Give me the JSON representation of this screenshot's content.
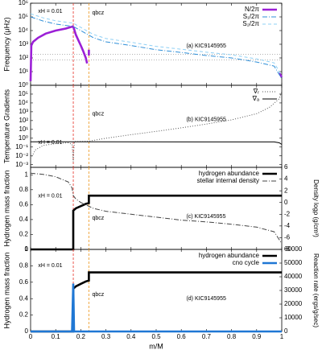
{
  "chart_data": [
    {
      "type": "line",
      "ylabel": "Frequency (μHz)",
      "ylog": true,
      "xlim": [
        0,
        1
      ],
      "xticks": [
        0,
        0.1,
        0.2,
        0.3,
        0.4,
        0.5,
        0.6,
        0.7,
        0.8,
        0.9,
        1
      ],
      "ylim": [
        1,
        1000000
      ],
      "yticks": [
        {
          "value": 1,
          "label": "10⁰"
        },
        {
          "value": 10,
          "label": "10¹"
        },
        {
          "value": 100,
          "label": "10²"
        },
        {
          "value": 1000,
          "label": "10³"
        },
        {
          "value": 10000,
          "label": "10⁴"
        },
        {
          "value": 100000,
          "label": "10⁵"
        },
        {
          "value": 1000000,
          "label": "10⁶"
        }
      ],
      "vlines": [
        {
          "x": 0.17,
          "color": "#e8453c"
        },
        {
          "x": 0.232,
          "color": "#f0a030"
        }
      ],
      "hlines": [
        70,
        180
      ],
      "annotations": [
        "xH = 0.01",
        "qbcz",
        "(a) KIC9145955"
      ],
      "series": [
        {
          "name": "N/2π",
          "color": "#9b1fd6",
          "style": "thick",
          "x": [
            0,
            0.003,
            0.01,
            0.03,
            0.06,
            0.1,
            0.14,
            0.168,
            0.172,
            0.18,
            0.19,
            0.2,
            0.21,
            0.22,
            0.225,
            null,
            0.232,
            0.232,
            null,
            0.99,
            1.0
          ],
          "values": [
            2,
            800,
            1500,
            3000,
            6000,
            10000,
            14000,
            20000,
            15000,
            5000,
            2000,
            800,
            300,
            100,
            40,
            null,
            400,
            150,
            null,
            8,
            4
          ]
        },
        {
          "name": "S₁/2π",
          "color": "#2f8fd8",
          "style": "dashdot",
          "x": [
            0,
            0.05,
            0.1,
            0.17,
            0.2,
            0.25,
            0.3,
            0.4,
            0.5,
            0.6,
            0.7,
            0.8,
            0.9,
            0.97,
            1.0
          ],
          "values": [
            100000,
            50000,
            30000,
            20000,
            10000,
            3000,
            1500,
            800,
            400,
            250,
            150,
            100,
            50,
            25,
            3
          ]
        },
        {
          "name": "S₂/2π",
          "color": "#8fd0f5",
          "style": "dashed",
          "x": [
            0,
            0.05,
            0.1,
            0.17,
            0.2,
            0.25,
            0.3,
            0.4,
            0.5,
            0.6,
            0.7,
            0.8,
            0.9,
            0.97,
            1.0
          ],
          "values": [
            170000,
            85000,
            52000,
            35000,
            17000,
            5200,
            2600,
            1400,
            700,
            430,
            260,
            170,
            85,
            43,
            5
          ]
        }
      ]
    },
    {
      "type": "line",
      "ylabel": "Temperature Gradients",
      "ylog": true,
      "xlim": [
        0,
        1
      ],
      "xticks": [
        0,
        0.1,
        0.2,
        0.3,
        0.4,
        0.5,
        0.6,
        0.7,
        0.8,
        0.9,
        1
      ],
      "ylim": [
        0.0005,
        1000000
      ],
      "yticks": [
        {
          "value": 0.001,
          "label": "10⁻³"
        },
        {
          "value": 0.01,
          "label": "10⁻²"
        },
        {
          "value": 0.1,
          "label": "10⁻¹"
        },
        {
          "value": 1,
          "label": "10⁰"
        },
        {
          "value": 10,
          "label": "10¹"
        },
        {
          "value": 100,
          "label": "10²"
        },
        {
          "value": 1000,
          "label": "10³"
        },
        {
          "value": 10000,
          "label": "10⁴"
        },
        {
          "value": 100000,
          "label": "10⁵"
        }
      ],
      "vlines": [
        {
          "x": 0.17,
          "color": "#e8453c"
        },
        {
          "x": 0.232,
          "color": "#f0a030"
        }
      ],
      "annotations": [
        "xH = 0.01",
        "qbcz",
        "(b) KIC9145955"
      ],
      "series": [
        {
          "name": "∇ᵣ",
          "color": "#555555",
          "style": "dotted",
          "x": [
            0,
            0.02,
            0.05,
            0.1,
            0.15,
            0.165,
            0.17,
            0.172,
            0.175,
            0.2,
            0.23,
            0.3,
            0.4,
            0.5,
            0.6,
            0.7,
            0.8,
            0.9,
            0.95,
            0.99,
            1.0
          ],
          "values": [
            0.005,
            0.05,
            0.15,
            0.25,
            0.3,
            0.2,
            0.002,
            0.05,
            0.42,
            0.43,
            0.45,
            1,
            2.5,
            6,
            15,
            40,
            120,
            600,
            3000,
            30000,
            200000
          ]
        },
        {
          "name": "∇ₐ",
          "color": "#000000",
          "style": "solid",
          "x": [
            0,
            0.97,
            0.99,
            1.0
          ],
          "values": [
            0.4,
            0.38,
            0.3,
            0.2
          ]
        }
      ]
    },
    {
      "type": "line",
      "ylabel": "Hydrogen mass fraction",
      "y2label": "Density logρ (g/cm³)",
      "xlim": [
        0,
        1
      ],
      "xticks": [
        0,
        0.1,
        0.2,
        0.3,
        0.4,
        0.5,
        0.6,
        0.7,
        0.8,
        0.9,
        1
      ],
      "ylim": [
        0,
        1.1
      ],
      "yticks": [
        0,
        0.2,
        0.4,
        0.6,
        0.8,
        1
      ],
      "y2lim": [
        -8,
        6
      ],
      "y2ticks": [
        -8,
        -6,
        -4,
        -2,
        0,
        2,
        4,
        6
      ],
      "vlines": [
        {
          "x": 0.17,
          "color": "#e8453c"
        },
        {
          "x": 0.232,
          "color": "#f0a030"
        }
      ],
      "annotations": [
        "xH = 0.01",
        "qbcz",
        "(c) KIC9145955"
      ],
      "series": [
        {
          "name": "hydrogen abundance",
          "color": "#000000",
          "style": "thick",
          "x": [
            0,
            0.17,
            0.17,
            0.18,
            0.2,
            0.22,
            0.232,
            0.232,
            0.3,
            0.4,
            0.5,
            0.6,
            0.7,
            0.8,
            0.9,
            1.0
          ],
          "values": [
            0,
            0,
            0.52,
            0.55,
            0.58,
            0.61,
            0.62,
            0.72,
            0.72,
            0.72,
            0.72,
            0.72,
            0.72,
            0.72,
            0.72,
            0.72
          ]
        },
        {
          "name": "stellar internal density",
          "color": "#444444",
          "style": "dashdot",
          "axis": "y2",
          "x": [
            0,
            0.05,
            0.1,
            0.15,
            0.165,
            0.17,
            0.18,
            0.2,
            0.25,
            0.3,
            0.4,
            0.5,
            0.6,
            0.7,
            0.8,
            0.9,
            0.97,
            1.0
          ],
          "values": [
            5,
            4.8,
            4.4,
            3.5,
            2.5,
            1.2,
            0.6,
            0,
            -1,
            -1.5,
            -2,
            -2.5,
            -3,
            -3.3,
            -3.7,
            -4.2,
            -5,
            -7
          ]
        }
      ]
    },
    {
      "type": "line",
      "ylabel": "Hydrogen mass fraction",
      "y2label": "Reaction rate (ergs/g/sec)",
      "xlabel": "m/M",
      "xlim": [
        0,
        1
      ],
      "xticks": [
        0,
        0.1,
        0.2,
        0.3,
        0.4,
        0.5,
        0.6,
        0.7,
        0.8,
        0.9,
        1
      ],
      "ylim": [
        0,
        1
      ],
      "yticks": [
        0,
        0.2,
        0.4,
        0.6,
        0.8,
        1
      ],
      "y2lim": [
        0,
        60000
      ],
      "y2ticks": [
        0,
        10000,
        20000,
        30000,
        40000,
        50000,
        60000
      ],
      "vlines": [
        {
          "x": 0.17,
          "color": "#e8453c"
        },
        {
          "x": 0.232,
          "color": "#f0a030"
        }
      ],
      "annotations": [
        "xH = 0.01",
        "qbcz",
        "(d) KIC9145955"
      ],
      "series": [
        {
          "name": "hydrogen abundance",
          "color": "#000000",
          "style": "thick",
          "x": [
            0,
            0.17,
            0.17,
            0.18,
            0.2,
            0.22,
            0.232,
            0.232,
            0.3,
            0.4,
            0.5,
            0.6,
            0.7,
            0.8,
            0.9,
            1.0
          ],
          "values": [
            0,
            0,
            0.52,
            0.55,
            0.58,
            0.61,
            0.62,
            0.72,
            0.72,
            0.72,
            0.72,
            0.72,
            0.72,
            0.72,
            0.72,
            0.72
          ]
        },
        {
          "name": "cno cycle",
          "color": "#1f77d4",
          "style": "thick",
          "axis": "y2",
          "x": [
            0,
            0.165,
            0.17,
            0.173,
            1.0
          ],
          "values": [
            0,
            0,
            35000,
            0,
            0
          ]
        }
      ]
    }
  ]
}
